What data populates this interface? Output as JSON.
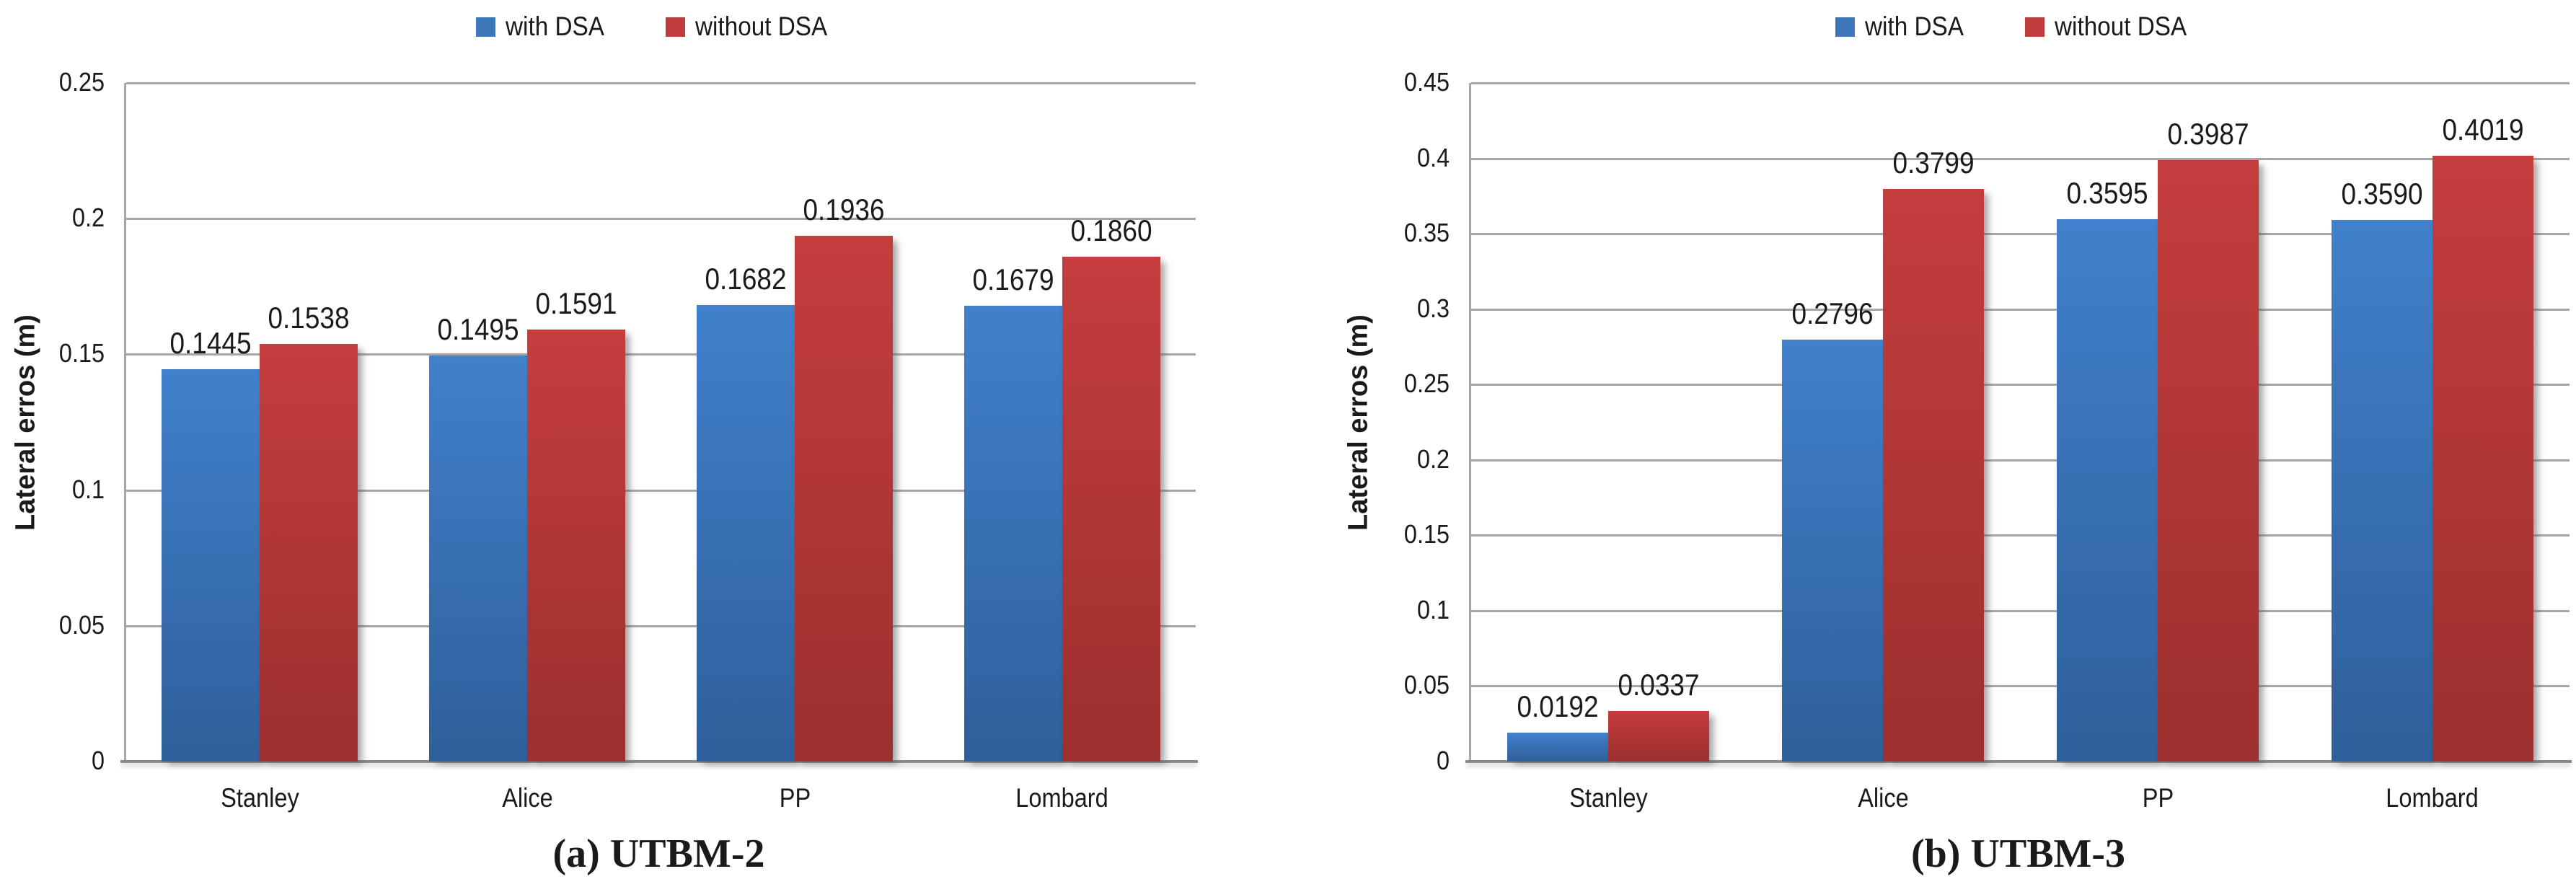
{
  "style": {
    "background": "#FFFFFF",
    "gridline_color": "#A6A6A6",
    "axis_color": "#8A8A8A",
    "text_color": "#1A1A1A"
  },
  "chart_data": [
    {
      "type": "bar",
      "caption": "(a) UTBM-2",
      "ylabel": "Lateral erros (m)",
      "xlabel": "",
      "categories": [
        "Stanley",
        "Alice",
        "PP",
        "Lombard"
      ],
      "series": [
        {
          "name": "with DSA",
          "legend_color": "#3D76B9",
          "color_top": "#4180CC",
          "color_bottom": "#2F5F9A",
          "values": [
            0.1445,
            0.1495,
            0.1682,
            0.1679
          ],
          "labels": [
            "0.1445",
            "0.1495",
            "0.1682",
            "0.1679"
          ]
        },
        {
          "name": "without DSA",
          "legend_color": "#BE3C3C",
          "color_top": "#C53D3D",
          "color_bottom": "#9C2F2F",
          "values": [
            0.1538,
            0.1591,
            0.1936,
            0.186
          ],
          "labels": [
            "0.1538",
            "0.1591",
            "0.1936",
            "0.1860"
          ]
        }
      ],
      "ylim": [
        0,
        0.25
      ],
      "yticks": [
        "0",
        "0.05",
        "0.1",
        "0.15",
        "0.2",
        "0.25"
      ],
      "grid": true,
      "legend_position": "top"
    },
    {
      "type": "bar",
      "caption": "(b) UTBM-3",
      "ylabel": "Lateral erros (m)",
      "xlabel": "",
      "categories": [
        "Stanley",
        "Alice",
        "PP",
        "Lombard"
      ],
      "series": [
        {
          "name": "with DSA",
          "legend_color": "#3D76B9",
          "color_top": "#4180CC",
          "color_bottom": "#2F5F9A",
          "values": [
            0.0192,
            0.2796,
            0.3595,
            0.359
          ],
          "labels": [
            "0.0192",
            "0.2796",
            "0.3595",
            "0.3590"
          ]
        },
        {
          "name": "without DSA",
          "legend_color": "#BE3C3C",
          "color_top": "#C53D3D",
          "color_bottom": "#9C2F2F",
          "values": [
            0.0337,
            0.3799,
            0.3987,
            0.4019
          ],
          "labels": [
            "0.0337",
            "0.3799",
            "0.3987",
            "0.4019"
          ]
        }
      ],
      "ylim": [
        0,
        0.45
      ],
      "yticks": [
        "0",
        "0.05",
        "0.1",
        "0.15",
        "0.2",
        "0.25",
        "0.3",
        "0.35",
        "0.4",
        "0.45"
      ],
      "grid": true,
      "legend_position": "top"
    }
  ]
}
